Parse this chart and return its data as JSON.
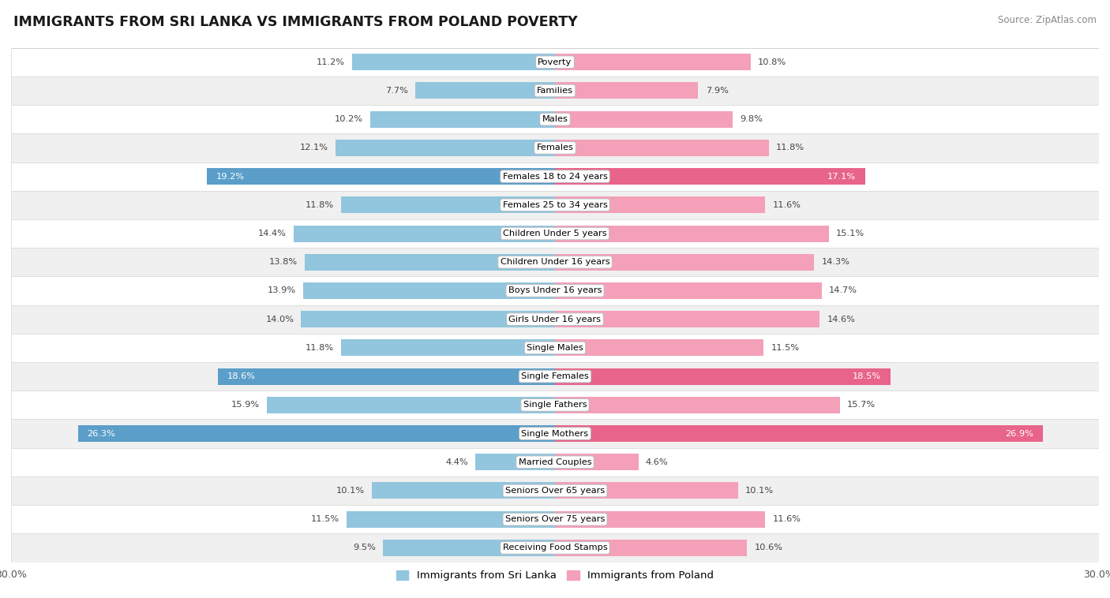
{
  "title": "IMMIGRANTS FROM SRI LANKA VS IMMIGRANTS FROM POLAND POVERTY",
  "source": "Source: ZipAtlas.com",
  "categories": [
    "Poverty",
    "Families",
    "Males",
    "Females",
    "Females 18 to 24 years",
    "Females 25 to 34 years",
    "Children Under 5 years",
    "Children Under 16 years",
    "Boys Under 16 years",
    "Girls Under 16 years",
    "Single Males",
    "Single Females",
    "Single Fathers",
    "Single Mothers",
    "Married Couples",
    "Seniors Over 65 years",
    "Seniors Over 75 years",
    "Receiving Food Stamps"
  ],
  "sri_lanka": [
    11.2,
    7.7,
    10.2,
    12.1,
    19.2,
    11.8,
    14.4,
    13.8,
    13.9,
    14.0,
    11.8,
    18.6,
    15.9,
    26.3,
    4.4,
    10.1,
    11.5,
    9.5
  ],
  "poland": [
    10.8,
    7.9,
    9.8,
    11.8,
    17.1,
    11.6,
    15.1,
    14.3,
    14.7,
    14.6,
    11.5,
    18.5,
    15.7,
    26.9,
    4.6,
    10.1,
    11.6,
    10.6
  ],
  "sri_lanka_color_normal": "#92c5de",
  "sri_lanka_color_highlight": "#5b9ec9",
  "poland_color_normal": "#f4a0b8",
  "poland_color_highlight": "#e8648a",
  "highlight_threshold": 17.0,
  "xlim": 30.0,
  "bar_height": 0.58,
  "legend_sri_lanka": "Immigrants from Sri Lanka",
  "legend_poland": "Immigrants from Poland"
}
